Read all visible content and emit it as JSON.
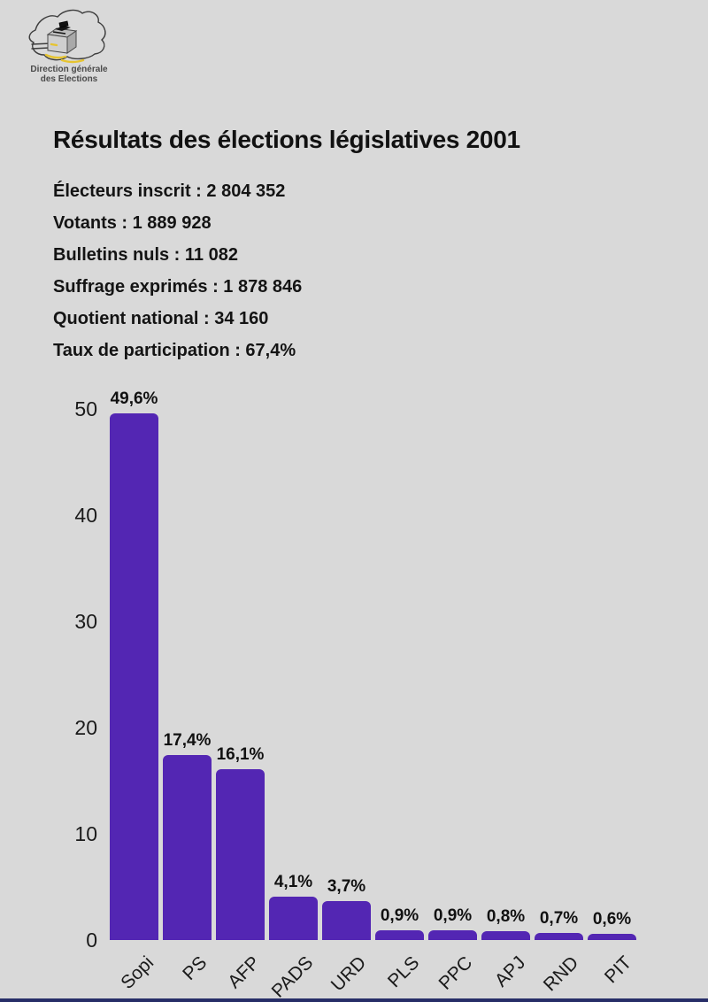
{
  "page": {
    "background_color": "#d9d9d9",
    "bottom_bar_color": "#272e68"
  },
  "logo": {
    "org_line1": "Direction générale",
    "org_line2": "des Elections",
    "map_color": "#3d3d3d",
    "accent_yellow": "#e6c430",
    "text_color": "#4a4a4a"
  },
  "header": {
    "title": "Résultats des élections législatives 2001"
  },
  "stats": {
    "items": [
      "Électeurs inscrit : 2 804 352",
      "Votants : 1 889 928",
      "Bulletins nuls : 11 082",
      "Suffrage exprimés : 1 878 846",
      "Quotient national : 34 160",
      "Taux de participation : 67,4%"
    ]
  },
  "chart_data": {
    "type": "bar",
    "title": "",
    "xlabel": "",
    "ylabel": "",
    "categories": [
      "Sopi",
      "PS",
      "AFP",
      "PADS",
      "URD",
      "PLS",
      "PPC",
      "APJ",
      "RND",
      "PIT"
    ],
    "values": [
      49.6,
      17.4,
      16.1,
      4.1,
      3.7,
      0.9,
      0.9,
      0.8,
      0.7,
      0.6
    ],
    "value_labels": [
      "49,6%",
      "17,4%",
      "16,1%",
      "4,1%",
      "3,7%",
      "0,9%",
      "0,9%",
      "0,8%",
      "0,7%",
      "0,6%"
    ],
    "unit": "%",
    "y_ticks": [
      50,
      40,
      30,
      20,
      10,
      0
    ],
    "ylim": [
      0,
      50
    ],
    "bar_color": "#5326b3",
    "grid": false,
    "legend": "none",
    "x_tick_rotation_deg": -45
  }
}
